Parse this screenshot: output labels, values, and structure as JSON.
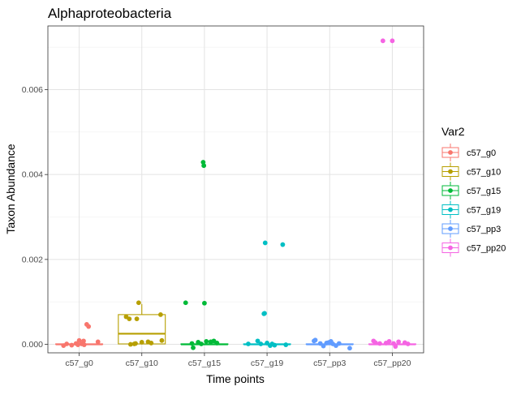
{
  "chart_data": {
    "type": "boxplot",
    "title": "Alphaproteobacteria",
    "xlabel": "Time points",
    "ylabel": "Taxon Abundance",
    "ylim": [
      -0.0002,
      0.0075
    ],
    "yticks": [
      0.0,
      0.002,
      0.004,
      0.006
    ],
    "ytick_labels": [
      "0.000",
      "0.002",
      "0.004",
      "0.006"
    ],
    "grid": true,
    "legend": {
      "title": "Var2",
      "position": "right"
    },
    "categories": [
      "c57_g0",
      "c57_g10",
      "c57_g15",
      "c57_g19",
      "c57_pp3",
      "c57_pp20"
    ],
    "colors": [
      "#F8766D",
      "#B79F00",
      "#00BA38",
      "#00BFC4",
      "#619CFF",
      "#F564E3"
    ],
    "boxes": [
      {
        "name": "c57_g0",
        "min": 0,
        "q1": 0,
        "median": 0,
        "q3": 1e-05,
        "max": 2e-05
      },
      {
        "name": "c57_g10",
        "min": 0,
        "q1": 1e-05,
        "median": 0.00025,
        "q3": 0.0007,
        "max": 0.00095
      },
      {
        "name": "c57_g15",
        "min": 0,
        "q1": 0,
        "median": 0,
        "q3": 1e-05,
        "max": 2e-05
      },
      {
        "name": "c57_g19",
        "min": 0,
        "q1": 0,
        "median": 0,
        "q3": 1e-05,
        "max": 2e-05
      },
      {
        "name": "c57_pp3",
        "min": 0,
        "q1": 0,
        "median": 0,
        "q3": 1e-05,
        "max": 2e-05
      },
      {
        "name": "c57_pp20",
        "min": 0,
        "q1": 0,
        "median": 0,
        "q3": 1e-05,
        "max": 2e-05
      }
    ],
    "points": [
      [
        [
          -0.25,
          -3e-05
        ],
        [
          -0.2,
          1e-05
        ],
        [
          -0.12,
          -2e-05
        ],
        [
          -0.05,
          2e-05
        ],
        [
          0.0,
          9e-05
        ],
        [
          0.04,
          1e-05
        ],
        [
          0.07,
          8e-05
        ],
        [
          0.12,
          0.00047
        ],
        [
          0.15,
          0.00042
        ],
        [
          0.08,
          -1e-05
        ],
        [
          0.3,
          6e-05
        ],
        [
          -0.02,
          -1e-05
        ]
      ],
      [
        [
          -0.25,
          0.00065
        ],
        [
          -0.2,
          0.0006
        ],
        [
          -0.18,
          0.0
        ],
        [
          -0.1,
          2e-05
        ],
        [
          -0.08,
          0.0006
        ],
        [
          -0.05,
          0.00098
        ],
        [
          0.0,
          5e-05
        ],
        [
          0.1,
          6e-05
        ],
        [
          0.15,
          3e-05
        ],
        [
          0.3,
          0.0007
        ],
        [
          0.32,
          9e-05
        ],
        [
          -0.12,
          1e-05
        ]
      ],
      [
        [
          -0.3,
          0.00098
        ],
        [
          -0.2,
          2e-05
        ],
        [
          -0.18,
          -8e-05
        ],
        [
          -0.05,
          1e-05
        ],
        [
          -0.02,
          0.00429
        ],
        [
          -0.01,
          0.00421
        ],
        [
          0.0,
          0.00097
        ],
        [
          0.03,
          7e-05
        ],
        [
          0.1,
          6e-05
        ],
        [
          0.15,
          8e-05
        ],
        [
          0.2,
          3e-05
        ],
        [
          -0.1,
          5e-05
        ]
      ],
      [
        [
          -0.3,
          1e-05
        ],
        [
          -0.15,
          8e-05
        ],
        [
          -0.1,
          1e-05
        ],
        [
          -0.05,
          0.00072
        ],
        [
          -0.04,
          0.00073
        ],
        [
          -0.03,
          0.00239
        ],
        [
          0.0,
          3e-05
        ],
        [
          0.05,
          -3e-05
        ],
        [
          0.12,
          -2e-05
        ],
        [
          0.25,
          0.00235
        ],
        [
          0.3,
          -1e-05
        ],
        [
          0.08,
          1e-05
        ]
      ],
      [
        [
          -0.25,
          8e-05
        ],
        [
          -0.23,
          0.0001
        ],
        [
          -0.15,
          2e-05
        ],
        [
          -0.1,
          -4e-05
        ],
        [
          -0.05,
          3e-05
        ],
        [
          0.0,
          5e-05
        ],
        [
          0.02,
          7e-05
        ],
        [
          0.05,
          1e-05
        ],
        [
          0.1,
          -3e-05
        ],
        [
          0.15,
          2e-05
        ],
        [
          0.32,
          -9e-05
        ],
        [
          -0.02,
          4e-05
        ]
      ],
      [
        [
          -0.3,
          8e-05
        ],
        [
          -0.27,
          4e-05
        ],
        [
          -0.2,
          2e-05
        ],
        [
          -0.15,
          0.00715
        ],
        [
          -0.1,
          3e-05
        ],
        [
          -0.05,
          7e-05
        ],
        [
          0.0,
          0.00715
        ],
        [
          0.02,
          2e-05
        ],
        [
          0.05,
          -5e-05
        ],
        [
          0.1,
          6e-05
        ],
        [
          0.2,
          4e-05
        ],
        [
          0.25,
          1e-05
        ]
      ]
    ]
  }
}
